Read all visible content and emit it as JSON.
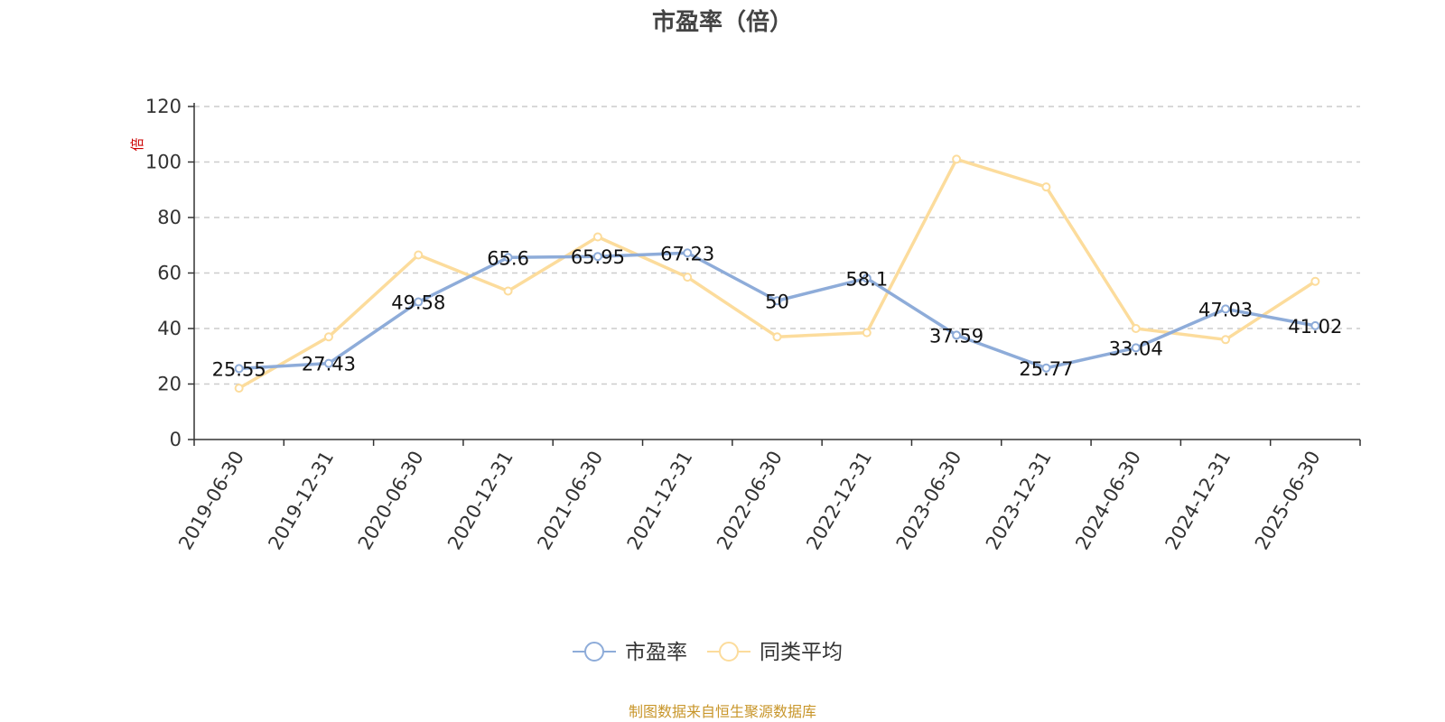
{
  "title": "市盈率（倍）",
  "footer": "制图数据来自恒生聚源数据库",
  "colors": {
    "series_pe": "#8eacd9",
    "series_avg": "#fcdc9c",
    "axis": "#333333",
    "grid": "#cccccc",
    "unit": "#cc0000",
    "footer": "#c8962a"
  },
  "chart_data": {
    "type": "line",
    "x": [
      "2019-06-30",
      "2019-12-31",
      "2020-06-30",
      "2020-12-31",
      "2021-06-30",
      "2021-12-31",
      "2022-06-30",
      "2022-12-31",
      "2023-06-30",
      "2023-12-31",
      "2024-06-30",
      "2024-12-31",
      "2025-06-30"
    ],
    "series": [
      {
        "name": "市盈率",
        "values": [
          25.55,
          27.43,
          49.58,
          65.6,
          65.95,
          67.23,
          50,
          58.1,
          37.59,
          25.77,
          33.04,
          47.03,
          41.02
        ],
        "labels": [
          "25.55",
          "27.43",
          "49.58",
          "65.6",
          "65.95",
          "67.23",
          "50",
          "58.1",
          "37.59",
          "25.77",
          "33.04",
          "47.03",
          "41.02"
        ]
      },
      {
        "name": "同类平均",
        "values": [
          18.5,
          37.0,
          66.5,
          53.5,
          73.0,
          58.5,
          37.0,
          38.5,
          101.0,
          91.0,
          40.0,
          36.0,
          57.0
        ]
      }
    ],
    "ylabel": "倍",
    "ylim": [
      0,
      120
    ],
    "yticks": [
      "0",
      "20",
      "40",
      "60",
      "80",
      "100",
      "120"
    ],
    "grid": true,
    "legend_position": "bottom-center"
  }
}
